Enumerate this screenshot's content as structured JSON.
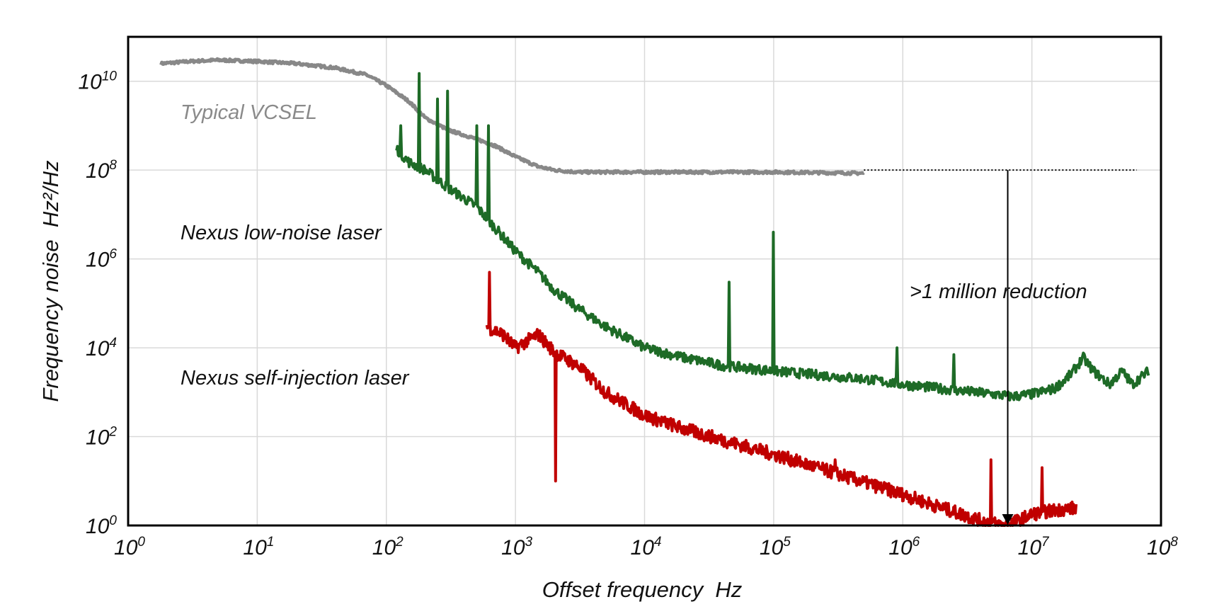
{
  "chart_data": {
    "type": "line",
    "x_scale": "log",
    "y_scale": "log",
    "xlabel": "Offset frequency  Hz",
    "ylabel": "Frequency noise  Hz²/Hz",
    "xlim": [
      1,
      100000000
    ],
    "ylim": [
      1,
      100000000000
    ],
    "grid": true,
    "x_ticks": [
      {
        "base": "10",
        "exp": "0"
      },
      {
        "base": "10",
        "exp": "1"
      },
      {
        "base": "10",
        "exp": "2"
      },
      {
        "base": "10",
        "exp": "3"
      },
      {
        "base": "10",
        "exp": "4"
      },
      {
        "base": "10",
        "exp": "5"
      },
      {
        "base": "10",
        "exp": "6"
      },
      {
        "base": "10",
        "exp": "7"
      },
      {
        "base": "10",
        "exp": "8"
      }
    ],
    "y_ticks": [
      {
        "base": "10",
        "exp": "0",
        "value": 1
      },
      {
        "base": "10",
        "exp": "2",
        "value": 100
      },
      {
        "base": "10",
        "exp": "4",
        "value": 10000
      },
      {
        "base": "10",
        "exp": "6",
        "value": 1000000
      },
      {
        "base": "10",
        "exp": "8",
        "value": 100000000
      },
      {
        "base": "10",
        "exp": "10",
        "value": 10000000000
      }
    ],
    "series": [
      {
        "name": "Typical VCSEL",
        "color": "#888888",
        "x": [
          1.8,
          3,
          5,
          10,
          20,
          40,
          70,
          100,
          150,
          200,
          300,
          500,
          700,
          1000,
          1500,
          2000,
          3000,
          10000,
          100000,
          500000
        ],
        "y": [
          25000000000,
          28000000000,
          30000000000,
          28000000000,
          25000000000,
          20000000000,
          14000000000,
          8000000000,
          3500000000,
          1500000000,
          800000000,
          500000000,
          350000000,
          200000000,
          120000000,
          100000000,
          90000000,
          90000000,
          90000000,
          85000000
        ]
      },
      {
        "name": "Nexus low-noise laser",
        "color": "#1e6b27",
        "x": [
          120,
          150,
          200,
          300,
          500,
          1000,
          1500,
          2000,
          3000,
          5000,
          10000,
          20000,
          40000,
          100000,
          200000,
          500000,
          1000000,
          2000000,
          5000000,
          7000000,
          10000000,
          15000000,
          20000000,
          25000000,
          30000000,
          40000000,
          50000000,
          60000000,
          80000000
        ],
        "y": [
          300000000,
          150000000,
          100000000,
          40000000,
          15000000,
          1500000,
          500000,
          200000,
          80000,
          30000,
          10000,
          6000,
          4000,
          3000,
          2500,
          2000,
          1500,
          1200,
          900,
          800,
          900,
          1200,
          2500,
          6000,
          3000,
          1500,
          3000,
          1500,
          3000
        ],
        "spikes": [
          {
            "x": 130,
            "y": 1000000000
          },
          {
            "x": 180,
            "y": 15000000000
          },
          {
            "x": 250,
            "y": 4000000000
          },
          {
            "x": 300,
            "y": 6000000000
          },
          {
            "x": 500,
            "y": 1000000000
          },
          {
            "x": 620,
            "y": 1000000000
          },
          {
            "x": 45000,
            "y": 300000
          },
          {
            "x": 100000,
            "y": 4000000
          },
          {
            "x": 900000,
            "y": 10000
          },
          {
            "x": 2500000,
            "y": 7000
          }
        ]
      },
      {
        "name": "Nexus self-injection laser",
        "color": "#c00000",
        "x": [
          600,
          800,
          1000,
          1500,
          2000,
          3000,
          5000,
          10000,
          20000,
          50000,
          100000,
          300000,
          1000000,
          2000000,
          4000000,
          6000000,
          8000000,
          10000000,
          15000000,
          22000000
        ],
        "y": [
          30000,
          20000,
          10000,
          20000,
          8000,
          4000,
          1000,
          300,
          150,
          70,
          40,
          15,
          5,
          2.5,
          1.3,
          1.0,
          1.3,
          1.8,
          2.2,
          2.5
        ],
        "spikes": [
          {
            "x": 630,
            "y": 500000
          },
          {
            "x": 2050,
            "y": 10
          },
          {
            "x": 4800000,
            "y": 30
          },
          {
            "x": 12000000,
            "y": 20
          },
          {
            "x": 300000,
            "y": 30
          }
        ]
      }
    ],
    "annotations": [
      {
        "text": ">1 million reduction",
        "x": 6500000,
        "y_from": 100000000,
        "y_to": 1
      }
    ]
  }
}
